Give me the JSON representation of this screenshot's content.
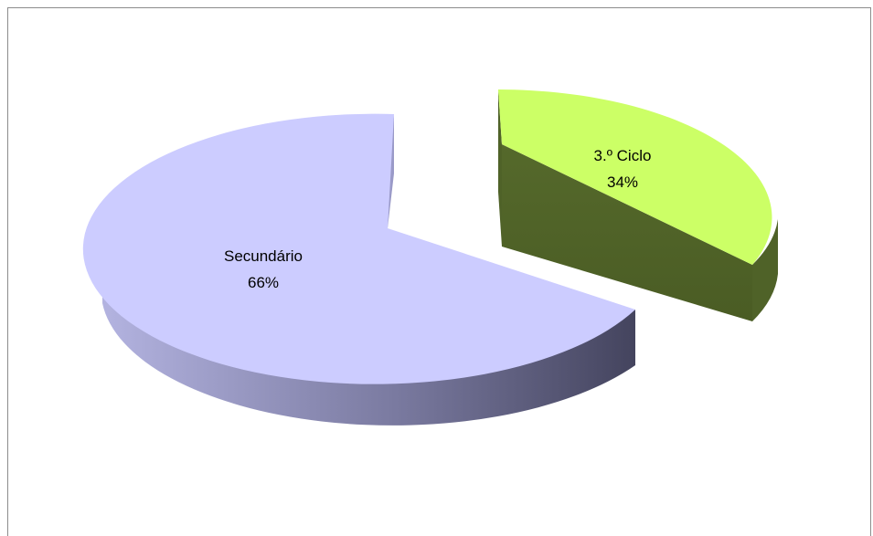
{
  "chart_data": {
    "type": "pie",
    "style": "3d-exploded",
    "title": "",
    "slices": [
      {
        "label": "3.º Ciclo",
        "value": 34,
        "percent_label": "34%",
        "color_top": "#ccff66",
        "color_side": "#4f6228"
      },
      {
        "label": "Secundário",
        "value": 66,
        "percent_label": "66%",
        "color_top": "#ccccff",
        "color_side": "#7f7fa8"
      }
    ],
    "legend": "none",
    "data_labels": "inside"
  }
}
